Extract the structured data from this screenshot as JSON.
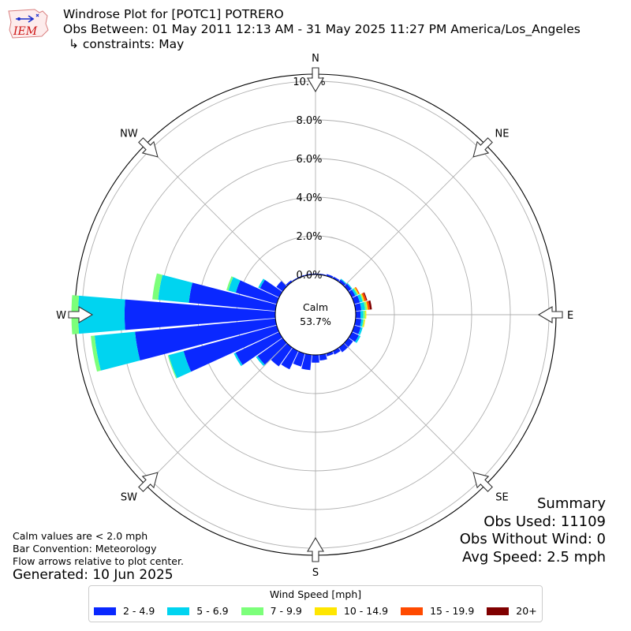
{
  "header": {
    "line1": "Windrose Plot for [POTC1] POTRERO",
    "line2": "Obs Between: 01 May 2011 12:13 AM - 31 May 2025 11:27 PM America/Los_Angeles",
    "line3": "↳ constraints: May"
  },
  "logo": {
    "text": "IEM",
    "icon": "iem-logo"
  },
  "notes": {
    "calm_note": "Calm values are < 2.0 mph",
    "bar_convention": "Bar Convention: Meteorology",
    "flow_arrows": "Flow arrows relative to plot center.",
    "generated": "Generated: 10 Jun 2025"
  },
  "summary": {
    "title": "Summary",
    "obs_used": "Obs Used: 11109",
    "obs_without_wind": "Obs Without Wind: 0",
    "avg_speed": "Avg Speed: 2.5 mph"
  },
  "legend": {
    "title": "Wind Speed [mph]",
    "items": [
      {
        "label": "2 - 4.9",
        "color": "#0a28ff"
      },
      {
        "label": "5 - 6.9",
        "color": "#00d4f0"
      },
      {
        "label": "7 - 9.9",
        "color": "#7cff7a"
      },
      {
        "label": "10 - 14.9",
        "color": "#ffe600"
      },
      {
        "label": "15 - 19.9",
        "color": "#ff4a00"
      },
      {
        "label": "20+",
        "color": "#800000"
      }
    ]
  },
  "chart_data": {
    "type": "windrose",
    "calm_label": "Calm",
    "calm_value": "53.7%",
    "calm_percent": 53.7,
    "radial_range": [
      0,
      10
    ],
    "radial_ticks": [
      "0.0%",
      "2.0%",
      "4.0%",
      "6.0%",
      "8.0%",
      "10.0%"
    ],
    "radial_tick_values": [
      0,
      2,
      4,
      6,
      8,
      10
    ],
    "directions": [
      "N",
      "NE",
      "E",
      "SE",
      "S",
      "SW",
      "W",
      "NW"
    ],
    "sector_width_deg": 10,
    "sector_centers_deg": [
      0,
      10,
      20,
      30,
      40,
      50,
      60,
      70,
      80,
      90,
      100,
      110,
      120,
      130,
      140,
      150,
      160,
      170,
      180,
      190,
      200,
      210,
      220,
      230,
      240,
      250,
      260,
      270,
      280,
      290,
      300,
      310,
      320,
      330,
      340,
      350
    ],
    "series": [
      {
        "name": "2 - 4.9",
        "color": "#0a28ff",
        "values": [
          0.05,
          0.05,
          0.1,
          0.1,
          0.15,
          0.2,
          0.2,
          0.3,
          0.3,
          0.25,
          0.3,
          0.35,
          0.4,
          0.3,
          0.3,
          0.2,
          0.15,
          0.3,
          0.4,
          0.8,
          0.7,
          1.05,
          1.2,
          1.6,
          2.5,
          5.0,
          7.3,
          7.8,
          4.5,
          2.2,
          1.1,
          0.4,
          0.1,
          0.05,
          0.05,
          0.05
        ]
      },
      {
        "name": "5 - 6.9",
        "color": "#00d4f0",
        "values": [
          0,
          0,
          0,
          0,
          0.05,
          0.05,
          0.1,
          0.15,
          0.2,
          0.15,
          0.1,
          0.1,
          0.1,
          0,
          0,
          0,
          0,
          0,
          0,
          0,
          0,
          0,
          0,
          0.1,
          0.1,
          0.8,
          2.1,
          2.4,
          1.6,
          0.4,
          0.1,
          0,
          0,
          0,
          0,
          0
        ]
      },
      {
        "name": "7 - 9.9",
        "color": "#7cff7a",
        "values": [
          0,
          0,
          0,
          0,
          0,
          0,
          0.05,
          0.05,
          0.1,
          0.1,
          0.05,
          0,
          0,
          0,
          0,
          0,
          0,
          0,
          0,
          0,
          0,
          0,
          0,
          0,
          0,
          0.05,
          0.2,
          0.35,
          0.3,
          0.1,
          0,
          0,
          0,
          0,
          0,
          0
        ]
      },
      {
        "name": "10 - 14.9",
        "color": "#ffe600",
        "values": [
          0,
          0,
          0,
          0,
          0,
          0,
          0.05,
          0.05,
          0.05,
          0.05,
          0.05,
          0,
          0,
          0,
          0,
          0,
          0,
          0,
          0,
          0,
          0,
          0,
          0,
          0,
          0,
          0,
          0,
          0,
          0,
          0,
          0,
          0,
          0,
          0,
          0,
          0
        ]
      },
      {
        "name": "15 - 19.9",
        "color": "#ff4a00",
        "values": [
          0,
          0,
          0,
          0,
          0,
          0,
          0.05,
          0.1,
          0.1,
          0,
          0,
          0,
          0,
          0,
          0,
          0,
          0,
          0,
          0,
          0,
          0,
          0,
          0,
          0,
          0,
          0,
          0,
          0,
          0,
          0,
          0,
          0,
          0,
          0,
          0,
          0
        ]
      },
      {
        "name": "20+",
        "color": "#800000",
        "values": [
          0,
          0,
          0,
          0,
          0,
          0,
          0,
          0.05,
          0.1,
          0,
          0,
          0,
          0,
          0,
          0,
          0,
          0,
          0,
          0,
          0,
          0,
          0,
          0,
          0,
          0,
          0,
          0,
          0,
          0,
          0,
          0,
          0,
          0,
          0,
          0,
          0
        ]
      }
    ]
  }
}
